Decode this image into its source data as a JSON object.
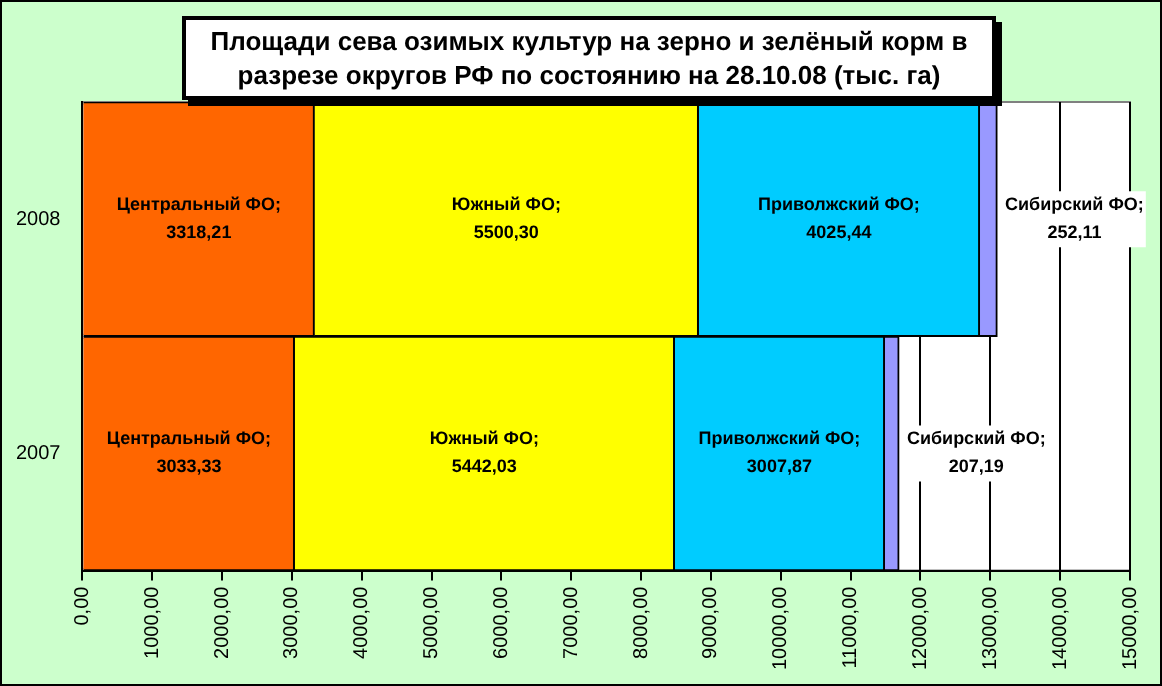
{
  "chart_data": {
    "type": "bar",
    "orientation": "horizontal",
    "stacked": true,
    "title": "Площади сева озимых культур  на зерно и зелёный корм  в разрезе округов РФ по состоянию на 28.10.08  (тыс. га)",
    "categories": [
      "2008",
      "2007"
    ],
    "series": [
      {
        "color": "#ff6600",
        "values": [
          3318.21,
          3033.33
        ],
        "value_labels": [
          "Центральный ФО;\n3318,21",
          "Центральный ФО;\n3033,33"
        ]
      },
      {
        "color": "#ffff00",
        "values": [
          5500.3,
          5442.03
        ],
        "value_labels": [
          "Южный ФО;\n5500,30",
          "Южный ФО;\n5442,03"
        ]
      },
      {
        "color": "#00ccff",
        "values": [
          4025.44,
          3007.87
        ],
        "value_labels": [
          "Приволжский ФО;\n4025,44",
          "Приволжский ФО;\n3007,87"
        ]
      },
      {
        "color": "#9999ff",
        "values": [
          252.11,
          207.19
        ],
        "value_labels": [
          "Сибирский ФО;\n252,11",
          "Сибирский ФО;\n207,19"
        ]
      }
    ],
    "xlim": [
      0,
      15000
    ],
    "xticks": [
      {
        "value": 0,
        "label": "0,00"
      },
      {
        "value": 1000,
        "label": "1000,00"
      },
      {
        "value": 2000,
        "label": "2000,00"
      },
      {
        "value": 3000,
        "label": "3000,00"
      },
      {
        "value": 4000,
        "label": "4000,00"
      },
      {
        "value": 5000,
        "label": "5000,00"
      },
      {
        "value": 6000,
        "label": "6000,00"
      },
      {
        "value": 7000,
        "label": "7000,00"
      },
      {
        "value": 8000,
        "label": "8000,00"
      },
      {
        "value": 9000,
        "label": "9000,00"
      },
      {
        "value": 10000,
        "label": "10000,00"
      },
      {
        "value": 11000,
        "label": "11000,00"
      },
      {
        "value": 12000,
        "label": "12000,00"
      },
      {
        "value": 13000,
        "label": "13000,00"
      },
      {
        "value": 14000,
        "label": "14000,00"
      },
      {
        "value": 15000,
        "label": "15000,00"
      }
    ],
    "grid": "x",
    "legend": false
  }
}
